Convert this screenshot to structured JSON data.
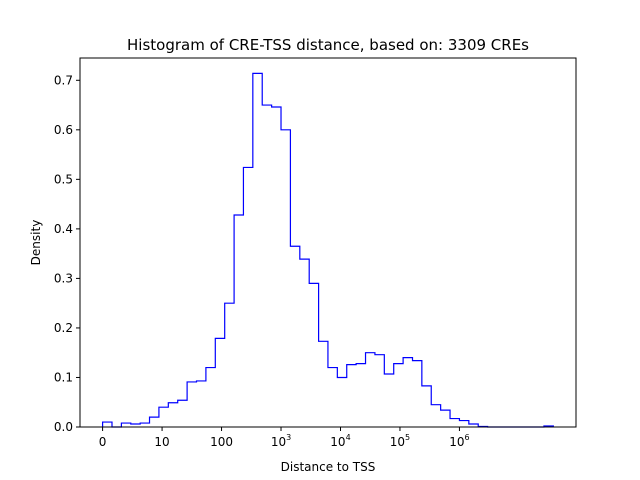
{
  "chart_data": {
    "type": "histogram",
    "title": "Histogram of CRE-TSS distance, based on: 3309 CREs",
    "xlabel": "Distance to TSS",
    "ylabel": "Density",
    "x_scale": "log10(distance + 1)",
    "xlim": [
      -0.38,
      7.96
    ],
    "ylim": [
      0,
      0.745
    ],
    "x_ticks": [
      {
        "value": 0,
        "label": "0"
      },
      {
        "value": 1,
        "label": "10"
      },
      {
        "value": 2,
        "label": "100"
      },
      {
        "value": 3,
        "base": "10",
        "exp": "3"
      },
      {
        "value": 4,
        "base": "10",
        "exp": "4"
      },
      {
        "value": 5,
        "base": "10",
        "exp": "5"
      },
      {
        "value": 6,
        "base": "10",
        "exp": "6"
      }
    ],
    "y_ticks": [
      0.0,
      0.1,
      0.2,
      0.3,
      0.4,
      0.5,
      0.6,
      0.7
    ],
    "y_tick_labels": [
      "0.0",
      "0.1",
      "0.2",
      "0.3",
      "0.4",
      "0.5",
      "0.6",
      "0.7"
    ],
    "bin_edges": [
      0,
      0.158,
      0.316,
      0.474,
      0.632,
      0.789,
      0.947,
      1.105,
      1.263,
      1.421,
      1.579,
      1.737,
      1.895,
      2.053,
      2.211,
      2.368,
      2.526,
      2.684,
      2.842,
      3.0,
      3.158,
      3.316,
      3.474,
      3.632,
      3.789,
      3.947,
      4.105,
      4.263,
      4.421,
      4.579,
      4.737,
      4.895,
      5.053,
      5.211,
      5.368,
      5.526,
      5.684,
      5.842,
      6.0,
      6.158,
      6.316,
      6.474,
      6.632,
      6.789,
      6.947,
      7.105,
      7.263,
      7.421,
      7.579
    ],
    "density": [
      0.01,
      0.0,
      0.008,
      0.006,
      0.008,
      0.02,
      0.04,
      0.049,
      0.054,
      0.091,
      0.093,
      0.12,
      0.179,
      0.25,
      0.428,
      0.524,
      0.714,
      0.65,
      0.646,
      0.6,
      0.365,
      0.339,
      0.29,
      0.173,
      0.12,
      0.1,
      0.126,
      0.128,
      0.15,
      0.146,
      0.107,
      0.128,
      0.14,
      0.134,
      0.083,
      0.045,
      0.034,
      0.017,
      0.013,
      0.006,
      0.001,
      0.0,
      0.0,
      0.0,
      0.0,
      0.0,
      0.0,
      0.002
    ],
    "grid": false,
    "legend": "none",
    "line_color": "#0000ff"
  }
}
